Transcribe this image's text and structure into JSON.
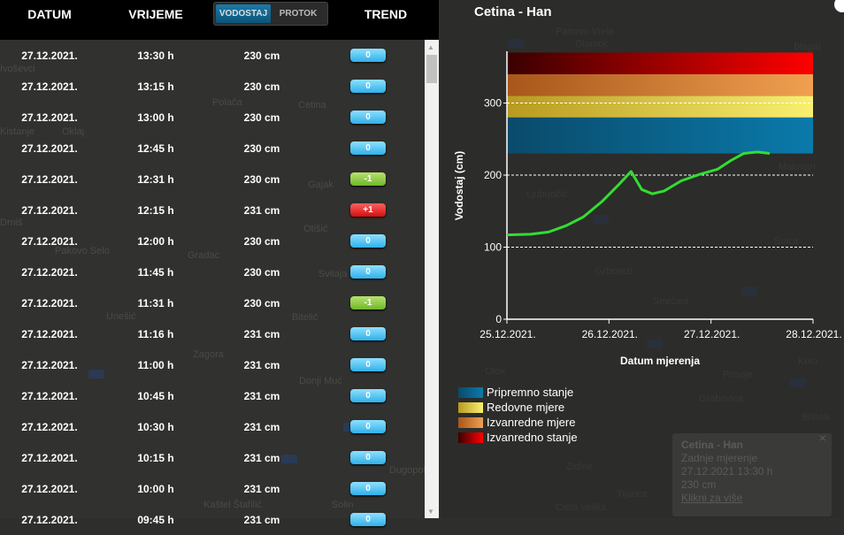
{
  "header": {
    "col_date": "DATUM",
    "col_time": "VRIJEME",
    "toggle_level": "VODOSTAJ",
    "toggle_flow": "PROTOK",
    "col_trend": "TREND"
  },
  "rows": [
    {
      "date": "27.12.2021.",
      "time": "13:30 h",
      "level": "230 cm",
      "trend": "0"
    },
    {
      "date": "27.12.2021.",
      "time": "13:15 h",
      "level": "230 cm",
      "trend": "0"
    },
    {
      "date": "27.12.2021.",
      "time": "13:00 h",
      "level": "230 cm",
      "trend": "0"
    },
    {
      "date": "27.12.2021.",
      "time": "12:45 h",
      "level": "230 cm",
      "trend": "0"
    },
    {
      "date": "27.12.2021.",
      "time": "12:31 h",
      "level": "230 cm",
      "trend": "-1"
    },
    {
      "date": "27.12.2021.",
      "time": "12:15 h",
      "level": "231 cm",
      "trend": "+1"
    },
    {
      "date": "27.12.2021.",
      "time": "12:00 h",
      "level": "230 cm",
      "trend": "0"
    },
    {
      "date": "27.12.2021.",
      "time": "11:45 h",
      "level": "230 cm",
      "trend": "0"
    },
    {
      "date": "27.12.2021.",
      "time": "11:31 h",
      "level": "230 cm",
      "trend": "-1"
    },
    {
      "date": "27.12.2021.",
      "time": "11:16 h",
      "level": "231 cm",
      "trend": "0"
    },
    {
      "date": "27.12.2021.",
      "time": "11:00 h",
      "level": "231 cm",
      "trend": "0"
    },
    {
      "date": "27.12.2021.",
      "time": "10:45 h",
      "level": "231 cm",
      "trend": "0"
    },
    {
      "date": "27.12.2021.",
      "time": "10:30 h",
      "level": "231 cm",
      "trend": "0"
    },
    {
      "date": "27.12.2021.",
      "time": "10:15 h",
      "level": "231 cm",
      "trend": "0"
    },
    {
      "date": "27.12.2021.",
      "time": "10:00 h",
      "level": "231 cm",
      "trend": "0"
    },
    {
      "date": "27.12.2021.",
      "time": "09:45 h",
      "level": "231 cm",
      "trend": "0"
    }
  ],
  "popup": {
    "title": "Cetina - Han",
    "line1": "Zadnje mjerenje",
    "line2": "27.12.2021 13:30 h",
    "line3": "230 cm",
    "link": "Klikni za više"
  },
  "map_labels": [
    "Ivoševci",
    "Polača",
    "Kistanje",
    "Oklaj",
    "Cetina",
    "Gajak",
    "Otišić",
    "Drniš",
    "Pakovo Selo",
    "Gradac",
    "Svilaja",
    "Bitelić",
    "Unešić",
    "Zagora",
    "Donji Muć",
    "Kaštel Štafilić",
    "Solin",
    "Dugopolje",
    "Otok",
    "Tijarica",
    "Cista Velika",
    "Glamoč",
    "Patrovo Vrelo",
    "Blagaj",
    "Ljubunčić",
    "Malovan",
    "Grborezi",
    "Smrčani",
    "Suica",
    "Prisoje",
    "Kolo",
    "Grabovica",
    "Brišnik",
    "Zidine"
  ],
  "chart_data": {
    "type": "line",
    "title": "Cetina - Han",
    "xlabel": "Datum mjerenja",
    "ylabel": "Vodostaj (cm)",
    "x_ticks": [
      "25.12.2021.",
      "26.12.2021.",
      "27.12.2021.",
      "28.12.2021."
    ],
    "y_ticks": [
      0,
      100,
      200,
      300
    ],
    "ylim": [
      0,
      370
    ],
    "x_range_hours": [
      0,
      72
    ],
    "grid": "horizontal dashed",
    "line_color": "#33dd33",
    "series": [
      {
        "name": "Vodostaj",
        "x_hours": [
          0,
          5.6,
          9.8,
          14,
          18,
          22.3,
          26.5,
          29.2,
          31.7,
          34.2,
          37,
          41,
          45.3,
          49.5,
          52.6,
          55.7,
          58.9,
          61.8
        ],
        "values": [
          117,
          118,
          121,
          130,
          142,
          163,
          188,
          205,
          180,
          174,
          178,
          192,
          201,
          208,
          220,
          230,
          232,
          230
        ]
      }
    ],
    "bands": [
      {
        "name": "Pripremno stanje",
        "from": 230,
        "to": 280,
        "color_start": "#0a4a6a",
        "color_end": "#0a7aaa"
      },
      {
        "name": "Redovne mjere",
        "from": 280,
        "to": 310,
        "color_start": "#b89a20",
        "color_end": "#f8f070"
      },
      {
        "name": "Izvanredne mjere",
        "from": 310,
        "to": 340,
        "color_start": "#a8561a",
        "color_end": "#f0a050"
      },
      {
        "name": "Izvanredno stanje",
        "from": 340,
        "to": 370,
        "color_start": "#3a0000",
        "color_end": "#ff0000"
      }
    ],
    "legend_position": "bottom-left"
  }
}
